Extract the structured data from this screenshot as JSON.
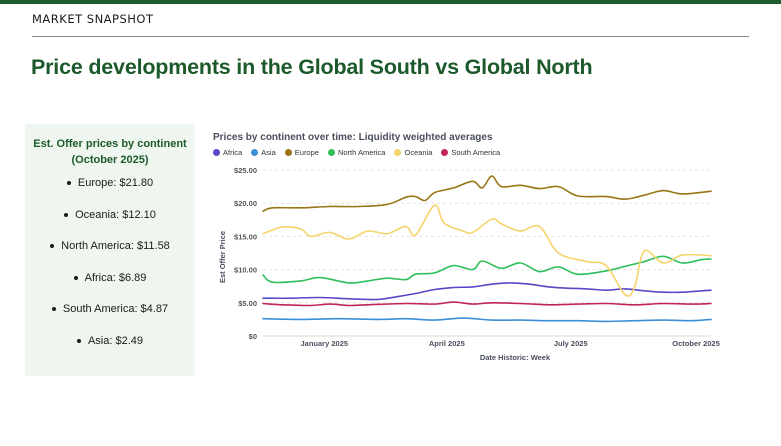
{
  "header": {
    "eyebrow": "MARKET SNAPSHOT",
    "headline": "Price developments in the Global South vs Global North"
  },
  "summary": {
    "title_line1": "Est. Offer prices by continent",
    "title_line2": "(October 2025)",
    "items": [
      "Europe: $21.80",
      "Oceania: $12.10",
      "North America: $11.58",
      "Africa: $6.89",
      "South America: $4.87",
      "Asia: $2.49"
    ]
  },
  "colors": {
    "brand_green": "#1d5a2b",
    "panel_bg": "#eef6ef"
  },
  "chart_data": {
    "type": "line",
    "title": "Prices by continent over time: Liquidity weighted averages",
    "xlabel": "Date Historic: Week",
    "ylabel": "Est Offer Price",
    "ylim": [
      0,
      25
    ],
    "yticks": [
      "$0",
      "$5.00",
      "$10.00",
      "$15.00",
      "$20.00",
      "$25.00"
    ],
    "ytick_values": [
      0,
      5,
      10,
      15,
      20,
      25
    ],
    "x_range": [
      "2024-12-01",
      "2025-10-26"
    ],
    "xticks": [
      {
        "label": "January 2025",
        "date": "2025-01-15"
      },
      {
        "label": "April 2025",
        "date": "2025-04-15"
      },
      {
        "label": "July 2025",
        "date": "2025-07-15"
      },
      {
        "label": "October 2025",
        "date": "2025-10-15"
      }
    ],
    "grid": "horizontal",
    "legend_position": "top-left",
    "series": [
      {
        "name": "Africa",
        "color": "#5b45c9",
        "points": [
          [
            "2024-12-01",
            5.7
          ],
          [
            "2024-12-22",
            5.7
          ],
          [
            "2025-01-12",
            5.8
          ],
          [
            "2025-02-02",
            5.6
          ],
          [
            "2025-02-23",
            5.5
          ],
          [
            "2025-03-09",
            5.9
          ],
          [
            "2025-03-23",
            6.4
          ],
          [
            "2025-04-06",
            7.0
          ],
          [
            "2025-04-20",
            7.3
          ],
          [
            "2025-05-04",
            7.4
          ],
          [
            "2025-05-18",
            7.8
          ],
          [
            "2025-06-01",
            8.0
          ],
          [
            "2025-06-15",
            7.8
          ],
          [
            "2025-06-29",
            7.4
          ],
          [
            "2025-07-13",
            7.2
          ],
          [
            "2025-07-27",
            7.1
          ],
          [
            "2025-08-10",
            6.9
          ],
          [
            "2025-08-24",
            7.1
          ],
          [
            "2025-09-07",
            6.8
          ],
          [
            "2025-09-21",
            6.6
          ],
          [
            "2025-10-05",
            6.6
          ],
          [
            "2025-10-26",
            6.9
          ]
        ]
      },
      {
        "name": "Asia",
        "color": "#3c8fd6",
        "points": [
          [
            "2024-12-01",
            2.6
          ],
          [
            "2024-12-29",
            2.5
          ],
          [
            "2025-01-26",
            2.6
          ],
          [
            "2025-02-23",
            2.5
          ],
          [
            "2025-03-16",
            2.6
          ],
          [
            "2025-04-06",
            2.4
          ],
          [
            "2025-04-27",
            2.7
          ],
          [
            "2025-05-18",
            2.4
          ],
          [
            "2025-06-08",
            2.4
          ],
          [
            "2025-06-29",
            2.3
          ],
          [
            "2025-07-20",
            2.3
          ],
          [
            "2025-08-10",
            2.2
          ],
          [
            "2025-08-31",
            2.3
          ],
          [
            "2025-09-21",
            2.4
          ],
          [
            "2025-10-12",
            2.3
          ],
          [
            "2025-10-26",
            2.5
          ]
        ]
      },
      {
        "name": "Europe",
        "color": "#9a7516",
        "points": [
          [
            "2024-12-01",
            18.8
          ],
          [
            "2024-12-08",
            19.3
          ],
          [
            "2024-12-29",
            19.3
          ],
          [
            "2025-01-19",
            19.5
          ],
          [
            "2025-02-09",
            19.5
          ],
          [
            "2025-03-02",
            19.8
          ],
          [
            "2025-03-16",
            20.9
          ],
          [
            "2025-03-23",
            21.0
          ],
          [
            "2025-03-30",
            20.4
          ],
          [
            "2025-04-06",
            21.6
          ],
          [
            "2025-04-20",
            22.3
          ],
          [
            "2025-05-04",
            23.3
          ],
          [
            "2025-05-11",
            22.3
          ],
          [
            "2025-05-18",
            24.1
          ],
          [
            "2025-05-25",
            22.5
          ],
          [
            "2025-06-08",
            22.7
          ],
          [
            "2025-06-22",
            22.2
          ],
          [
            "2025-07-06",
            22.5
          ],
          [
            "2025-07-20",
            21.1
          ],
          [
            "2025-08-10",
            21.0
          ],
          [
            "2025-08-24",
            20.6
          ],
          [
            "2025-09-07",
            21.2
          ],
          [
            "2025-09-21",
            21.9
          ],
          [
            "2025-10-05",
            21.4
          ],
          [
            "2025-10-26",
            21.8
          ]
        ]
      },
      {
        "name": "North America",
        "color": "#2fbf5b",
        "points": [
          [
            "2024-12-01",
            9.2
          ],
          [
            "2024-12-08",
            8.1
          ],
          [
            "2024-12-29",
            8.3
          ],
          [
            "2025-01-12",
            8.8
          ],
          [
            "2025-02-02",
            8.0
          ],
          [
            "2025-02-16",
            8.3
          ],
          [
            "2025-03-02",
            8.7
          ],
          [
            "2025-03-16",
            8.5
          ],
          [
            "2025-03-23",
            9.3
          ],
          [
            "2025-04-06",
            9.5
          ],
          [
            "2025-04-20",
            10.6
          ],
          [
            "2025-05-04",
            10.0
          ],
          [
            "2025-05-11",
            11.3
          ],
          [
            "2025-05-25",
            10.2
          ],
          [
            "2025-06-08",
            11.0
          ],
          [
            "2025-06-22",
            9.7
          ],
          [
            "2025-07-06",
            10.4
          ],
          [
            "2025-07-20",
            9.3
          ],
          [
            "2025-08-10",
            9.8
          ],
          [
            "2025-08-24",
            10.5
          ],
          [
            "2025-09-07",
            11.2
          ],
          [
            "2025-09-21",
            12.0
          ],
          [
            "2025-10-05",
            11.0
          ],
          [
            "2025-10-19",
            11.5
          ],
          [
            "2025-10-26",
            11.6
          ]
        ]
      },
      {
        "name": "Oceania",
        "color": "#f7d36b",
        "points": [
          [
            "2024-12-01",
            15.4
          ],
          [
            "2024-12-15",
            16.4
          ],
          [
            "2024-12-29",
            16.1
          ],
          [
            "2025-01-05",
            15.0
          ],
          [
            "2025-01-19",
            15.6
          ],
          [
            "2025-02-02",
            14.6
          ],
          [
            "2025-02-16",
            15.8
          ],
          [
            "2025-03-02",
            15.4
          ],
          [
            "2025-03-16",
            16.5
          ],
          [
            "2025-03-23",
            15.2
          ],
          [
            "2025-04-06",
            19.7
          ],
          [
            "2025-04-13",
            17.0
          ],
          [
            "2025-04-27",
            15.8
          ],
          [
            "2025-05-04",
            15.6
          ],
          [
            "2025-05-18",
            17.6
          ],
          [
            "2025-05-25",
            16.9
          ],
          [
            "2025-06-08",
            15.8
          ],
          [
            "2025-06-22",
            16.5
          ],
          [
            "2025-07-06",
            12.5
          ],
          [
            "2025-07-27",
            11.2
          ],
          [
            "2025-08-10",
            10.6
          ],
          [
            "2025-08-24",
            6.2
          ],
          [
            "2025-08-31",
            7.4
          ],
          [
            "2025-09-07",
            12.8
          ],
          [
            "2025-09-21",
            11.0
          ],
          [
            "2025-10-05",
            12.2
          ],
          [
            "2025-10-26",
            12.1
          ]
        ]
      },
      {
        "name": "South America",
        "color": "#c0245a",
        "points": [
          [
            "2024-12-01",
            4.9
          ],
          [
            "2024-12-15",
            4.7
          ],
          [
            "2025-01-05",
            4.6
          ],
          [
            "2025-01-19",
            4.8
          ],
          [
            "2025-02-02",
            4.6
          ],
          [
            "2025-02-16",
            4.7
          ],
          [
            "2025-03-16",
            4.9
          ],
          [
            "2025-04-06",
            4.8
          ],
          [
            "2025-04-20",
            5.1
          ],
          [
            "2025-05-04",
            4.8
          ],
          [
            "2025-05-18",
            5.0
          ],
          [
            "2025-06-08",
            4.9
          ],
          [
            "2025-06-29",
            4.7
          ],
          [
            "2025-07-20",
            4.8
          ],
          [
            "2025-08-10",
            4.9
          ],
          [
            "2025-08-31",
            4.7
          ],
          [
            "2025-09-21",
            4.9
          ],
          [
            "2025-10-12",
            4.8
          ],
          [
            "2025-10-26",
            4.9
          ]
        ]
      }
    ]
  }
}
